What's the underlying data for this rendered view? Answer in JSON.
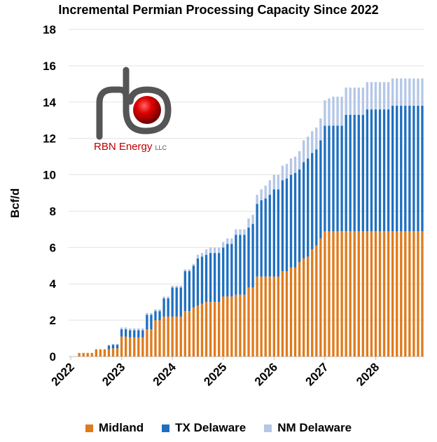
{
  "chart_data": {
    "type": "bar",
    "stacked": true,
    "title": "Incremental Permian Processing Capacity Since 2022",
    "ylabel": "Bcf/d",
    "xlabel": "",
    "ylim": [
      0,
      18
    ],
    "yticks": [
      0,
      2,
      4,
      6,
      8,
      10,
      12,
      14,
      16,
      18
    ],
    "xticks": [
      "2022",
      "2023",
      "2024",
      "2025",
      "2026",
      "2027",
      "2028"
    ],
    "grid": true,
    "legend_position": "bottom",
    "x_granularity": "monthly, Jan 2022 – Dec 2028",
    "series": [
      {
        "name": "Midland",
        "color": "#E07B1C",
        "values": [
          0,
          0,
          0.2,
          0.2,
          0.2,
          0.2,
          0.4,
          0.4,
          0.4,
          0.4,
          0.45,
          0.45,
          1.1,
          1.1,
          1.05,
          1.05,
          1.05,
          1.05,
          1.5,
          1.5,
          2.0,
          2.0,
          2.2,
          2.2,
          2.2,
          2.2,
          2.2,
          2.5,
          2.5,
          2.7,
          2.8,
          2.9,
          3.0,
          3.0,
          3.0,
          3.0,
          3.3,
          3.3,
          3.3,
          3.4,
          3.4,
          3.4,
          3.8,
          3.8,
          4.4,
          4.4,
          4.4,
          4.4,
          4.4,
          4.4,
          4.7,
          4.7,
          4.9,
          4.9,
          5.2,
          5.4,
          5.5,
          5.9,
          6.1,
          6.5,
          6.9,
          6.9,
          6.9,
          6.9,
          6.9,
          6.9,
          6.9,
          6.9,
          6.9,
          6.9,
          6.9,
          6.9,
          6.9,
          6.9,
          6.9,
          6.9,
          6.9,
          6.9,
          6.9,
          6.9,
          6.9,
          6.9,
          6.9,
          6.9
        ]
      },
      {
        "name": "TX Delaware",
        "color": "#1F6FC0",
        "values": [
          0,
          0,
          0,
          0,
          0,
          0,
          0,
          0,
          0,
          0.2,
          0.2,
          0.2,
          0.4,
          0.4,
          0.4,
          0.4,
          0.4,
          0.4,
          0.8,
          0.8,
          0.5,
          0.5,
          1.0,
          1.0,
          1.6,
          1.6,
          1.6,
          2.2,
          2.2,
          2.3,
          2.6,
          2.6,
          2.6,
          2.7,
          2.7,
          2.7,
          2.7,
          2.9,
          2.9,
          3.3,
          3.3,
          3.3,
          3.3,
          3.5,
          4.0,
          4.2,
          4.3,
          4.5,
          4.8,
          4.8,
          5.0,
          5.1,
          5.1,
          5.2,
          5.1,
          5.3,
          5.4,
          5.3,
          5.3,
          5.4,
          5.8,
          5.8,
          5.8,
          5.8,
          5.8,
          6.4,
          6.4,
          6.4,
          6.4,
          6.4,
          6.7,
          6.7,
          6.7,
          6.7,
          6.7,
          6.7,
          6.9,
          6.9,
          6.9,
          6.9,
          6.9,
          6.9,
          6.9,
          6.9
        ]
      },
      {
        "name": "NM Delaware",
        "color": "#B4C7E7",
        "values": [
          0,
          0,
          0,
          0,
          0,
          0,
          0,
          0,
          0,
          0.05,
          0.05,
          0.05,
          0.1,
          0.1,
          0.1,
          0.1,
          0.1,
          0.1,
          0.1,
          0.1,
          0.1,
          0.1,
          0.1,
          0.1,
          0.1,
          0.1,
          0.1,
          0.1,
          0.1,
          0.1,
          0.2,
          0.2,
          0.3,
          0.3,
          0.3,
          0.3,
          0.3,
          0.3,
          0.3,
          0.3,
          0.3,
          0.3,
          0.5,
          0.5,
          0.5,
          0.6,
          0.7,
          0.8,
          0.8,
          0.8,
          0.8,
          0.8,
          0.9,
          0.9,
          1.0,
          1.2,
          1.2,
          1.2,
          1.2,
          1.2,
          1.4,
          1.5,
          1.6,
          1.6,
          1.6,
          1.5,
          1.5,
          1.5,
          1.5,
          1.5,
          1.5,
          1.5,
          1.5,
          1.5,
          1.5,
          1.5,
          1.5,
          1.5,
          1.5,
          1.5,
          1.5,
          1.5,
          1.5,
          1.5
        ]
      }
    ]
  },
  "logo": {
    "name": "RBN Energy",
    "suffix": "LLC"
  }
}
